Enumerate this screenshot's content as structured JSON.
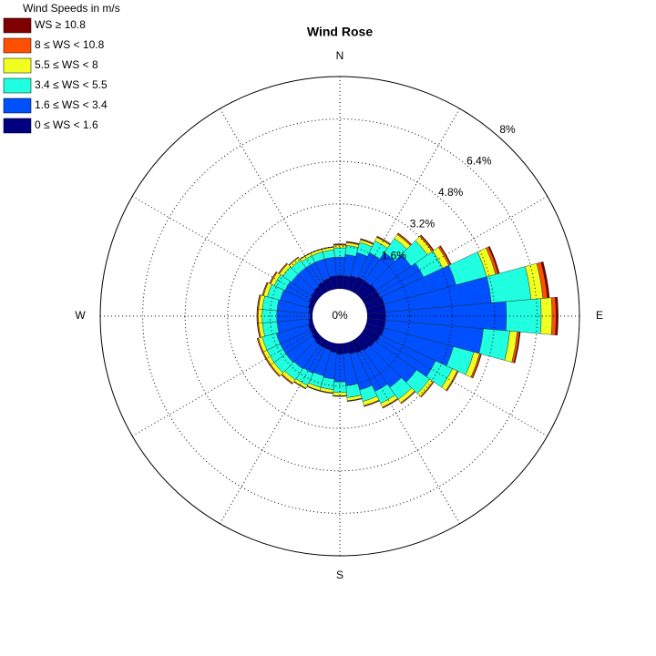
{
  "chart_data": {
    "type": "windrose",
    "title": "Wind Rose",
    "legend_title": "Wind Speeds in m/s",
    "categories": [
      "N",
      null,
      null,
      null,
      null,
      null,
      null,
      null,
      null,
      "E",
      null,
      null,
      null,
      null,
      null,
      null,
      null,
      null,
      "S",
      null,
      null,
      null,
      null,
      null,
      null,
      null,
      null,
      "W",
      null,
      null,
      null,
      null,
      null,
      null,
      null,
      null
    ],
    "rlim": [
      0,
      8
    ],
    "rticks": [
      {
        "value": 0,
        "label": "0%"
      },
      {
        "value": 1.6,
        "label": "1.6%"
      },
      {
        "value": 3.2,
        "label": "3.2%"
      },
      {
        "value": 4.8,
        "label": "4.8%"
      },
      {
        "value": 6.4,
        "label": "6.4%"
      },
      {
        "value": 8,
        "label": "8%"
      }
    ],
    "grid": true,
    "legend_position": "top-left",
    "series": [
      {
        "name": "0 ≤ WS < 1.6",
        "color": "#000080",
        "values": [
          0.5,
          0.5,
          0.55,
          0.6,
          0.6,
          0.65,
          0.65,
          0.7,
          0.7,
          0.7,
          0.7,
          0.7,
          0.65,
          0.6,
          0.55,
          0.5,
          0.45,
          0.4,
          0.4,
          0.35,
          0.3,
          0.3,
          0.3,
          0.25,
          0.2,
          0.2,
          0.15,
          0.1,
          0.15,
          0.2,
          0.25,
          0.3,
          0.35,
          0.4,
          0.45,
          0.5
        ]
      },
      {
        "name": "1.6 ≤ WS < 3.4",
        "color": "#0050ff",
        "values": [
          0.7,
          0.8,
          0.9,
          1.0,
          1.3,
          1.6,
          1.8,
          2.8,
          4.0,
          4.55,
          3.7,
          2.7,
          2.3,
          1.9,
          1.7,
          1.6,
          1.4,
          1.2,
          1.05,
          1.0,
          1.0,
          1.05,
          1.1,
          1.2,
          1.25,
          1.25,
          1.2,
          1.25,
          1.2,
          1.1,
          1.0,
          0.9,
          0.85,
          0.8,
          0.75,
          0.7
        ]
      },
      {
        "name": "3.4 ≤ WS < 5.5",
        "color": "#20ffe0",
        "values": [
          0.35,
          0.35,
          0.4,
          0.5,
          0.65,
          0.75,
          0.8,
          1.2,
          1.5,
          1.31,
          1.0,
          0.8,
          0.7,
          0.6,
          0.55,
          0.5,
          0.45,
          0.45,
          0.4,
          0.4,
          0.45,
          0.5,
          0.5,
          0.55,
          0.55,
          0.55,
          0.55,
          0.55,
          0.55,
          0.5,
          0.45,
          0.4,
          0.35,
          0.28,
          0.28,
          0.28
        ]
      },
      {
        "name": "5.5 ≤ WS < 8",
        "color": "#f0ff20",
        "values": [
          0.1,
          0.1,
          0.1,
          0.15,
          0.18,
          0.22,
          0.25,
          0.35,
          0.45,
          0.41,
          0.28,
          0.22,
          0.2,
          0.16,
          0.16,
          0.16,
          0.16,
          0.12,
          0.12,
          0.12,
          0.12,
          0.12,
          0.15,
          0.15,
          0.15,
          0.15,
          0.15,
          0.15,
          0.15,
          0.15,
          0.15,
          0.15,
          0.12,
          0.1,
          0.1,
          0.1
        ]
      },
      {
        "name": "8 ≤ WS < 10.8",
        "color": "#ff5000",
        "values": [
          0.03,
          0.03,
          0.03,
          0.03,
          0.05,
          0.05,
          0.07,
          0.1,
          0.17,
          0.15,
          0.08,
          0.06,
          0.04,
          0.03,
          0.03,
          0.03,
          0.03,
          0.02,
          0.02,
          0.02,
          0.02,
          0.02,
          0.04,
          0.04,
          0.04,
          0.04,
          0.04,
          0.04,
          0.04,
          0.04,
          0.04,
          0.04,
          0.02,
          0.01,
          0.01,
          0.01
        ]
      },
      {
        "name": "WS ≥ 10.8",
        "color": "#800000",
        "values": [
          0.02,
          0.02,
          0.02,
          0.02,
          0.02,
          0.03,
          0.03,
          0.05,
          0.08,
          0.08,
          0.04,
          0.02,
          0.01,
          0.01,
          0.01,
          0.01,
          0.01,
          0.01,
          0.01,
          0.01,
          0.01,
          0.01,
          0.01,
          0.01,
          0.01,
          0.01,
          0.01,
          0.01,
          0.01,
          0.01,
          0.01,
          0.01,
          0.01,
          0.01,
          0.01,
          0.01
        ]
      }
    ]
  }
}
